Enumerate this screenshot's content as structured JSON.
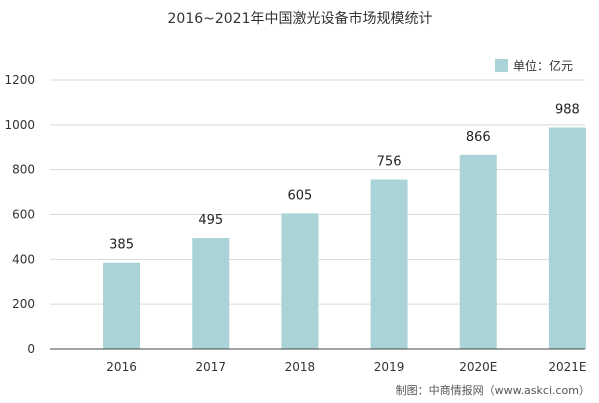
{
  "chart_data": {
    "type": "bar",
    "title": "2016~2021年中国激光设备市场规模统计",
    "categories": [
      "2016",
      "2017",
      "2018",
      "2019",
      "2020E",
      "2021E"
    ],
    "series": [
      {
        "name": "单位：亿元",
        "values": [
          385,
          495,
          605,
          756,
          866,
          988
        ]
      }
    ],
    "data_labels": [
      "385",
      "495",
      "605",
      "756",
      "866",
      "988"
    ],
    "xlabel": "",
    "ylabel": "",
    "ylim": [
      0,
      1200
    ],
    "yticks": [
      "0",
      "200",
      "400",
      "600",
      "800",
      "1000",
      "1200"
    ],
    "grid": true,
    "legend_position": "top-right",
    "bar_color": "#a9d3d6",
    "source": "制图：中商情报网（www.askci.com）"
  }
}
